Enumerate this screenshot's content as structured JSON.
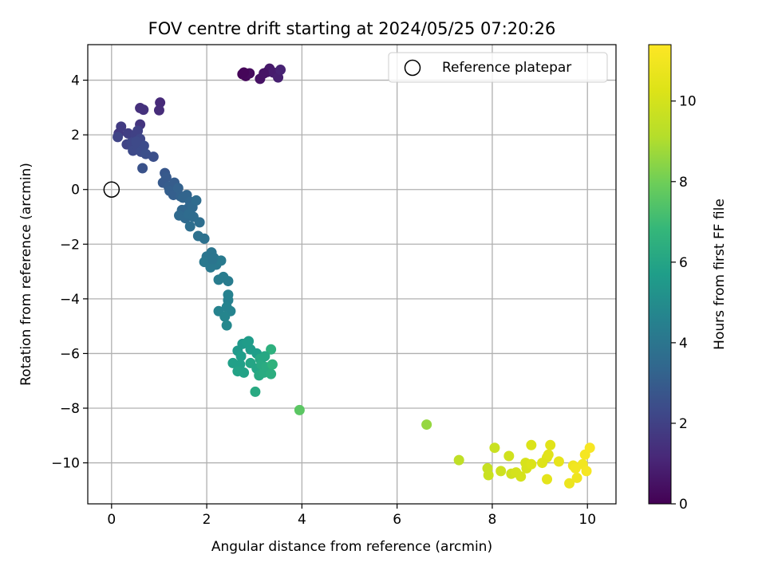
{
  "chart_data": {
    "type": "scatter",
    "title": "FOV centre drift starting at 2024/05/25 07:20:26",
    "xlabel": "Angular distance from reference (arcmin)",
    "ylabel": "Rotation from reference (arcmin)",
    "xlim": [
      -0.5,
      10.6
    ],
    "ylim": [
      -11.5,
      5.3
    ],
    "xticks": [
      0,
      2,
      4,
      6,
      8,
      10
    ],
    "yticks": [
      -10,
      -8,
      -6,
      -4,
      -2,
      0,
      2,
      4
    ],
    "grid": true,
    "legend": {
      "placement": "top-right",
      "entries": [
        "Reference platepar"
      ]
    },
    "reference_point": {
      "x": 0,
      "y": 0,
      "label": "Reference platepar"
    },
    "colorbar": {
      "label": "Hours from first FF file",
      "colormap": "viridis",
      "range": [
        0,
        11.4
      ],
      "ticks": [
        0,
        2,
        4,
        6,
        8,
        10
      ]
    },
    "series": [
      {
        "points": [
          {
            "x": 2.75,
            "y": 4.22,
            "h": 0.1
          },
          {
            "x": 2.82,
            "y": 4.15,
            "h": 0.2
          },
          {
            "x": 2.9,
            "y": 4.25,
            "h": 0.3
          },
          {
            "x": 3.12,
            "y": 4.05,
            "h": 0.5
          },
          {
            "x": 3.27,
            "y": 4.3,
            "h": 0.6
          },
          {
            "x": 3.32,
            "y": 4.42,
            "h": 0.7
          },
          {
            "x": 3.4,
            "y": 4.28,
            "h": 0.8
          },
          {
            "x": 3.5,
            "y": 4.1,
            "h": 0.9
          },
          {
            "x": 3.55,
            "y": 4.38,
            "h": 1.0
          },
          {
            "x": 2.78,
            "y": 4.28,
            "h": 0.15
          },
          {
            "x": 3.2,
            "y": 4.25,
            "h": 0.55
          },
          {
            "x": 1.02,
            "y": 3.18,
            "h": 1.2
          },
          {
            "x": 1.0,
            "y": 2.9,
            "h": 1.3
          },
          {
            "x": 0.6,
            "y": 2.98,
            "h": 1.4
          },
          {
            "x": 0.67,
            "y": 2.92,
            "h": 1.5
          },
          {
            "x": 0.6,
            "y": 2.38,
            "h": 1.6
          },
          {
            "x": 0.15,
            "y": 2.05,
            "h": 1.7
          },
          {
            "x": 0.2,
            "y": 2.3,
            "h": 1.8
          },
          {
            "x": 0.35,
            "y": 2.05,
            "h": 1.9
          },
          {
            "x": 0.5,
            "y": 2.0,
            "h": 2.0
          },
          {
            "x": 0.55,
            "y": 2.15,
            "h": 2.0
          },
          {
            "x": 0.13,
            "y": 1.92,
            "h": 2.1
          },
          {
            "x": 0.32,
            "y": 1.65,
            "h": 2.1
          },
          {
            "x": 0.42,
            "y": 1.72,
            "h": 2.2
          },
          {
            "x": 0.45,
            "y": 1.42,
            "h": 2.3
          },
          {
            "x": 0.55,
            "y": 1.55,
            "h": 2.3
          },
          {
            "x": 0.6,
            "y": 1.85,
            "h": 2.2
          },
          {
            "x": 0.62,
            "y": 1.38,
            "h": 2.4
          },
          {
            "x": 0.68,
            "y": 1.6,
            "h": 2.4
          },
          {
            "x": 0.72,
            "y": 1.3,
            "h": 2.5
          },
          {
            "x": 0.65,
            "y": 0.78,
            "h": 2.6
          },
          {
            "x": 0.88,
            "y": 1.2,
            "h": 2.5
          },
          {
            "x": 0.52,
            "y": 1.75,
            "h": 2.3
          },
          {
            "x": 1.12,
            "y": 0.6,
            "h": 2.8
          },
          {
            "x": 1.08,
            "y": 0.25,
            "h": 2.9
          },
          {
            "x": 1.15,
            "y": 0.45,
            "h": 2.9
          },
          {
            "x": 1.2,
            "y": 0.1,
            "h": 3.0
          },
          {
            "x": 1.32,
            "y": 0.25,
            "h": 3.0
          },
          {
            "x": 1.22,
            "y": -0.05,
            "h": 3.1
          },
          {
            "x": 1.3,
            "y": -0.2,
            "h": 3.1
          },
          {
            "x": 1.4,
            "y": 0.05,
            "h": 3.2
          },
          {
            "x": 1.45,
            "y": -0.25,
            "h": 3.2
          },
          {
            "x": 1.5,
            "y": -0.3,
            "h": 3.3
          },
          {
            "x": 1.58,
            "y": -0.2,
            "h": 3.3
          },
          {
            "x": 1.65,
            "y": -0.45,
            "h": 3.4
          },
          {
            "x": 1.6,
            "y": -0.7,
            "h": 3.4
          },
          {
            "x": 1.48,
            "y": -0.75,
            "h": 3.4
          },
          {
            "x": 1.42,
            "y": -0.95,
            "h": 3.5
          },
          {
            "x": 1.55,
            "y": -1.05,
            "h": 3.5
          },
          {
            "x": 1.7,
            "y": -0.65,
            "h": 3.5
          },
          {
            "x": 1.78,
            "y": -0.4,
            "h": 3.6
          },
          {
            "x": 1.62,
            "y": -0.9,
            "h": 3.6
          },
          {
            "x": 1.72,
            "y": -1.0,
            "h": 3.6
          },
          {
            "x": 1.85,
            "y": -1.2,
            "h": 3.7
          },
          {
            "x": 1.65,
            "y": -1.35,
            "h": 3.7
          },
          {
            "x": 1.82,
            "y": -1.7,
            "h": 3.8
          },
          {
            "x": 1.95,
            "y": -1.8,
            "h": 3.8
          },
          {
            "x": 2.1,
            "y": -2.3,
            "h": 4.0
          },
          {
            "x": 2.0,
            "y": -2.45,
            "h": 4.0
          },
          {
            "x": 2.15,
            "y": -2.5,
            "h": 4.0
          },
          {
            "x": 1.95,
            "y": -2.65,
            "h": 4.1
          },
          {
            "x": 2.2,
            "y": -2.75,
            "h": 4.1
          },
          {
            "x": 2.08,
            "y": -2.85,
            "h": 4.1
          },
          {
            "x": 2.3,
            "y": -2.6,
            "h": 4.2
          },
          {
            "x": 2.25,
            "y": -3.3,
            "h": 4.3
          },
          {
            "x": 2.35,
            "y": -3.2,
            "h": 4.3
          },
          {
            "x": 2.45,
            "y": -3.35,
            "h": 4.3
          },
          {
            "x": 2.12,
            "y": -2.55,
            "h": 4.0
          },
          {
            "x": 2.45,
            "y": -3.85,
            "h": 4.5
          },
          {
            "x": 2.45,
            "y": -4.05,
            "h": 4.5
          },
          {
            "x": 2.42,
            "y": -4.3,
            "h": 4.6
          },
          {
            "x": 2.25,
            "y": -4.45,
            "h": 4.6
          },
          {
            "x": 2.5,
            "y": -4.45,
            "h": 4.6
          },
          {
            "x": 2.38,
            "y": -4.65,
            "h": 4.7
          },
          {
            "x": 2.42,
            "y": -4.97,
            "h": 4.8
          },
          {
            "x": 2.65,
            "y": -5.9,
            "h": 5.5
          },
          {
            "x": 2.75,
            "y": -5.65,
            "h": 5.5
          },
          {
            "x": 2.85,
            "y": -5.6,
            "h": 5.6
          },
          {
            "x": 2.92,
            "y": -5.85,
            "h": 5.6
          },
          {
            "x": 3.05,
            "y": -6.0,
            "h": 5.7
          },
          {
            "x": 2.72,
            "y": -6.1,
            "h": 5.7
          },
          {
            "x": 2.55,
            "y": -6.35,
            "h": 5.8
          },
          {
            "x": 2.7,
            "y": -6.4,
            "h": 5.8
          },
          {
            "x": 2.65,
            "y": -6.65,
            "h": 5.9
          },
          {
            "x": 2.78,
            "y": -6.7,
            "h": 5.9
          },
          {
            "x": 2.92,
            "y": -6.35,
            "h": 6.0
          },
          {
            "x": 3.05,
            "y": -6.55,
            "h": 6.0
          },
          {
            "x": 3.12,
            "y": -6.2,
            "h": 6.1
          },
          {
            "x": 3.15,
            "y": -6.4,
            "h": 6.2
          },
          {
            "x": 3.1,
            "y": -6.8,
            "h": 6.2
          },
          {
            "x": 3.2,
            "y": -6.7,
            "h": 6.3
          },
          {
            "x": 3.25,
            "y": -6.5,
            "h": 6.3
          },
          {
            "x": 3.35,
            "y": -6.75,
            "h": 6.4
          },
          {
            "x": 3.35,
            "y": -5.85,
            "h": 6.5
          },
          {
            "x": 3.38,
            "y": -6.4,
            "h": 6.6
          },
          {
            "x": 3.02,
            "y": -7.4,
            "h": 6.2
          },
          {
            "x": 2.88,
            "y": -5.55,
            "h": 5.6
          },
          {
            "x": 3.22,
            "y": -6.1,
            "h": 6.1
          },
          {
            "x": 3.95,
            "y": -8.07,
            "h": 7.6
          },
          {
            "x": 6.62,
            "y": -8.6,
            "h": 8.6
          },
          {
            "x": 7.3,
            "y": -9.9,
            "h": 9.4
          },
          {
            "x": 7.9,
            "y": -10.2,
            "h": 9.6
          },
          {
            "x": 7.92,
            "y": -10.45,
            "h": 9.7
          },
          {
            "x": 8.05,
            "y": -9.45,
            "h": 9.7
          },
          {
            "x": 8.18,
            "y": -10.3,
            "h": 9.8
          },
          {
            "x": 8.35,
            "y": -9.75,
            "h": 9.9
          },
          {
            "x": 8.4,
            "y": -10.4,
            "h": 9.9
          },
          {
            "x": 8.5,
            "y": -10.35,
            "h": 10.0
          },
          {
            "x": 8.6,
            "y": -10.5,
            "h": 10.0
          },
          {
            "x": 8.7,
            "y": -10.0,
            "h": 10.1
          },
          {
            "x": 8.72,
            "y": -10.2,
            "h": 10.1
          },
          {
            "x": 8.82,
            "y": -10.05,
            "h": 10.2
          },
          {
            "x": 8.82,
            "y": -9.35,
            "h": 10.2
          },
          {
            "x": 9.05,
            "y": -10.0,
            "h": 10.3
          },
          {
            "x": 9.15,
            "y": -9.8,
            "h": 10.3
          },
          {
            "x": 9.18,
            "y": -9.7,
            "h": 10.4
          },
          {
            "x": 9.22,
            "y": -9.35,
            "h": 10.4
          },
          {
            "x": 9.15,
            "y": -10.6,
            "h": 10.5
          },
          {
            "x": 9.4,
            "y": -9.95,
            "h": 10.6
          },
          {
            "x": 9.62,
            "y": -10.75,
            "h": 10.8
          },
          {
            "x": 9.7,
            "y": -10.1,
            "h": 10.9
          },
          {
            "x": 9.78,
            "y": -10.55,
            "h": 10.9
          },
          {
            "x": 9.9,
            "y": -10.05,
            "h": 11.0
          },
          {
            "x": 9.95,
            "y": -9.7,
            "h": 11.1
          },
          {
            "x": 9.98,
            "y": -10.3,
            "h": 11.1
          },
          {
            "x": 10.05,
            "y": -9.45,
            "h": 11.2
          },
          {
            "x": 9.75,
            "y": -10.2,
            "h": 11.0
          }
        ]
      }
    ]
  }
}
